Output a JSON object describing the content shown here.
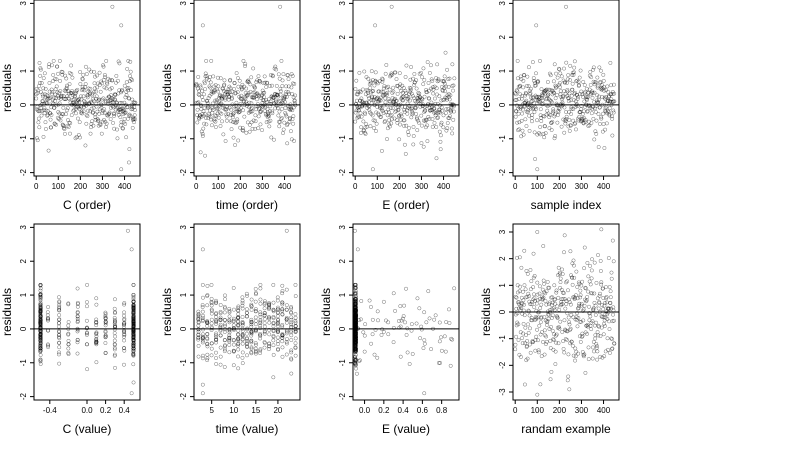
{
  "chart_data": [
    {
      "type": "scatter",
      "title": "",
      "xlabel": "C (order)",
      "ylabel": "residuals",
      "xlim": [
        -10,
        470
      ],
      "ylim": [
        -2.1,
        3.1
      ],
      "xticks": [
        0,
        100,
        200,
        300,
        400
      ],
      "xtick_labels": [
        "0",
        "100",
        "200",
        "300",
        "400"
      ],
      "yticks": [
        -2,
        -1,
        0,
        1,
        2,
        3
      ],
      "ytick_labels": [
        "-2",
        "-1",
        "0",
        "1",
        "2",
        "3"
      ],
      "hline": 0,
      "point_count": 450,
      "notable_points": [
        {
          "x": 345,
          "y": 2.9
        },
        {
          "x": 385,
          "y": 2.35
        },
        {
          "x": 385,
          "y": -1.9
        },
        {
          "x": 420,
          "y": -1.7
        }
      ]
    },
    {
      "type": "scatter",
      "title": "",
      "xlabel": "time (order)",
      "ylabel": "residuals",
      "xlim": [
        -10,
        470
      ],
      "ylim": [
        -2.1,
        3.1
      ],
      "xticks": [
        0,
        100,
        200,
        300,
        400
      ],
      "xtick_labels": [
        "0",
        "100",
        "200",
        "300",
        "400"
      ],
      "yticks": [
        -2,
        -1,
        0,
        1,
        2,
        3
      ],
      "ytick_labels": [
        "-2",
        "-1",
        "0",
        "1",
        "2",
        "3"
      ],
      "hline": 0,
      "point_count": 450,
      "notable_points": [
        {
          "x": 30,
          "y": 2.35
        },
        {
          "x": 380,
          "y": 2.9
        },
        {
          "x": 20,
          "y": -1.4
        },
        {
          "x": 40,
          "y": -1.5
        }
      ]
    },
    {
      "type": "scatter",
      "title": "",
      "xlabel": "E (order)",
      "ylabel": "residuals",
      "xlim": [
        -10,
        470
      ],
      "ylim": [
        -2.1,
        3.1
      ],
      "xticks": [
        0,
        100,
        200,
        300,
        400
      ],
      "xtick_labels": [
        "0",
        "100",
        "200",
        "300",
        "400"
      ],
      "yticks": [
        -2,
        -1,
        0,
        1,
        2,
        3
      ],
      "ytick_labels": [
        "-2",
        "-1",
        "0",
        "1",
        "2",
        "3"
      ],
      "hline": 0,
      "point_count": 450,
      "notable_points": [
        {
          "x": 90,
          "y": 2.35
        },
        {
          "x": 165,
          "y": 2.9
        },
        {
          "x": 80,
          "y": -1.9
        },
        {
          "x": 440,
          "y": 1.2
        }
      ]
    },
    {
      "type": "scatter",
      "title": "",
      "xlabel": "sample index",
      "ylabel": "residuals",
      "xlim": [
        -10,
        470
      ],
      "ylim": [
        -2.1,
        3.1
      ],
      "xticks": [
        0,
        100,
        200,
        300,
        400
      ],
      "xtick_labels": [
        "0",
        "100",
        "200",
        "300",
        "400"
      ],
      "yticks": [
        -2,
        -1,
        0,
        1,
        2,
        3
      ],
      "ytick_labels": [
        "-2",
        "-1",
        "0",
        "1",
        "2",
        "3"
      ],
      "hline": 0,
      "point_count": 450,
      "notable_points": [
        {
          "x": 95,
          "y": 2.35
        },
        {
          "x": 230,
          "y": 2.9
        },
        {
          "x": 90,
          "y": -1.6
        },
        {
          "x": 100,
          "y": -1.9
        }
      ]
    },
    {
      "type": "scatter",
      "title": "",
      "xlabel": "C (value)",
      "ylabel": "residuals",
      "xlim": [
        -0.57,
        0.57
      ],
      "ylim": [
        -2.1,
        3.1
      ],
      "xticks": [
        -0.4,
        0.0,
        0.2,
        0.4
      ],
      "xtick_labels": [
        "-0.4",
        "0.0",
        "0.2",
        "0.4"
      ],
      "yticks": [
        -2,
        -1,
        0,
        1,
        2,
        3
      ],
      "ytick_labels": [
        "-2",
        "-1",
        "0",
        "1",
        "2",
        "3"
      ],
      "hline": 0,
      "point_count": 450,
      "value_columns": [
        -0.5,
        -0.42,
        -0.3,
        -0.2,
        -0.1,
        0.0,
        0.1,
        0.2,
        0.3,
        0.4,
        0.5
      ],
      "notable_points": [
        {
          "x": 0.44,
          "y": 2.9
        },
        {
          "x": 0.48,
          "y": 2.35
        },
        {
          "x": 0.48,
          "y": -1.9
        }
      ]
    },
    {
      "type": "scatter",
      "title": "",
      "xlabel": "time (value)",
      "ylabel": "residuals",
      "xlim": [
        1,
        25
      ],
      "ylim": [
        -2.1,
        3.1
      ],
      "xticks": [
        5,
        10,
        15,
        20
      ],
      "xtick_labels": [
        "5",
        "10",
        "15",
        "20"
      ],
      "yticks": [
        -2,
        -1,
        0,
        1,
        2,
        3
      ],
      "ytick_labels": [
        "-2",
        "-1",
        "0",
        "1",
        "2",
        "3"
      ],
      "hline": 0,
      "point_count": 450,
      "value_columns": [
        2,
        3,
        4,
        5,
        6,
        7,
        8,
        9,
        10,
        11,
        12,
        13,
        14,
        15,
        16,
        17,
        18,
        19,
        20,
        21,
        22,
        23,
        24
      ],
      "notable_points": [
        {
          "x": 3,
          "y": 2.35
        },
        {
          "x": 22,
          "y": 2.9
        },
        {
          "x": 3,
          "y": -1.9
        }
      ]
    },
    {
      "type": "scatter",
      "title": "",
      "xlabel": "E (value)",
      "ylabel": "residuals",
      "xlim": [
        -0.12,
        0.98
      ],
      "ylim": [
        -2.1,
        3.1
      ],
      "xticks": [
        0.0,
        0.2,
        0.4,
        0.6,
        0.8
      ],
      "xtick_labels": [
        "0.0",
        "0.2",
        "0.4",
        "0.6",
        "0.8"
      ],
      "yticks": [
        -2,
        -1,
        0,
        1,
        2,
        3
      ],
      "ytick_labels": [
        "-2",
        "-1",
        "0",
        "1",
        "2",
        "3"
      ],
      "hline": 0,
      "point_count": 450,
      "notes": "most points stacked at the left end of the axis; sparse points to the right",
      "notable_points": [
        {
          "x": -0.1,
          "y": 2.9
        },
        {
          "x": -0.07,
          "y": 2.35
        },
        {
          "x": 0.93,
          "y": 1.2
        }
      ]
    },
    {
      "type": "scatter",
      "title": "",
      "xlabel": "randam example",
      "ylabel": "residuals",
      "xlim": [
        -10,
        470
      ],
      "ylim": [
        -3.3,
        3.3
      ],
      "xticks": [
        0,
        100,
        200,
        300,
        400
      ],
      "xtick_labels": [
        "0",
        "100",
        "200",
        "300",
        "400"
      ],
      "yticks": [
        -3,
        -2,
        -1,
        0,
        1,
        2,
        3
      ],
      "ytick_labels": [
        "-3",
        "-2",
        "-1",
        "0",
        "1",
        "2",
        "3"
      ],
      "hline": 0,
      "point_count": 450,
      "notable_points": [
        {
          "x": 100,
          "y": 3.0
        },
        {
          "x": 390,
          "y": 3.1
        },
        {
          "x": 100,
          "y": -3.1
        }
      ]
    }
  ]
}
